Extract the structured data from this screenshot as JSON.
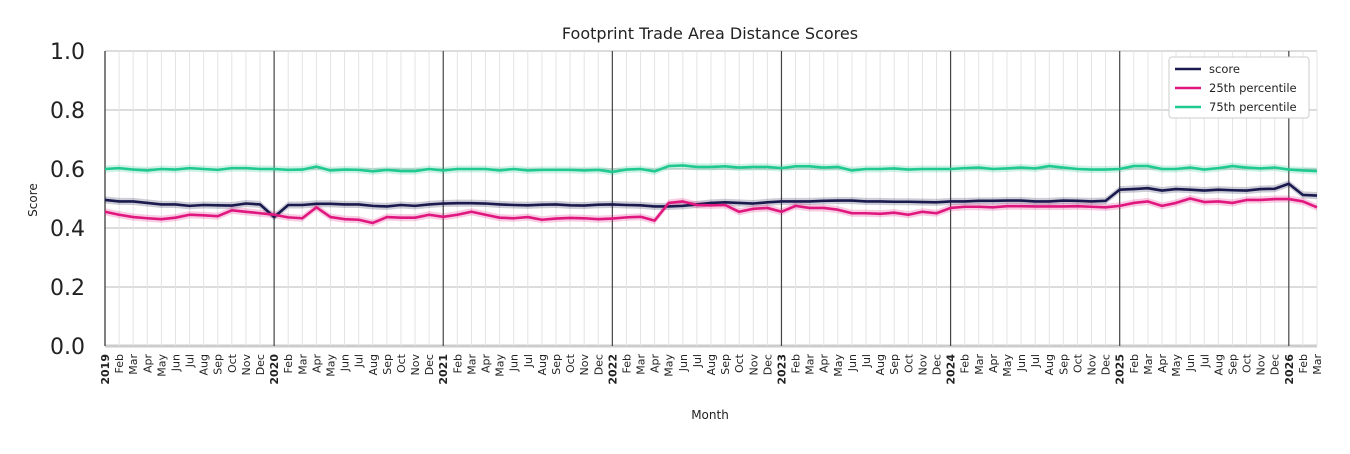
{
  "chart_data": {
    "type": "line",
    "title": "Footprint Trade Area Distance Scores",
    "xlabel": "Month",
    "ylabel": "Score",
    "ylim": [
      0,
      1
    ],
    "yticks": [
      "0.0",
      "0.2",
      "0.4",
      "0.6",
      "0.8",
      "1.0"
    ],
    "grid": true,
    "legend_position": "top-right",
    "x_tick_labels": [
      "2019",
      "Feb",
      "Mar",
      "Apr",
      "May",
      "Jun",
      "Jul",
      "Aug",
      "Sep",
      "Oct",
      "Nov",
      "Dec",
      "2020",
      "Feb",
      "Mar",
      "Apr",
      "May",
      "Jun",
      "Jul",
      "Aug",
      "Sep",
      "Oct",
      "Nov",
      "Dec",
      "2021",
      "Feb",
      "Mar",
      "Apr",
      "May",
      "Jun",
      "Jul",
      "Aug",
      "Sep",
      "Oct",
      "Nov",
      "Dec",
      "2022",
      "Feb",
      "Mar",
      "Apr",
      "May",
      "Jun",
      "Jul",
      "Aug",
      "Sep",
      "Oct",
      "Nov",
      "Dec",
      "2023",
      "Feb",
      "Mar",
      "Apr",
      "May",
      "Jun",
      "Jul",
      "Aug",
      "Sep",
      "Oct",
      "Nov",
      "Dec",
      "2024",
      "Feb",
      "Mar",
      "Apr",
      "May",
      "Jun",
      "Jul",
      "Aug",
      "Sep",
      "Oct",
      "Nov",
      "Dec",
      "2025",
      "Feb",
      "Mar",
      "Apr",
      "May",
      "Jun",
      "Jul",
      "Aug",
      "Sep",
      "Oct",
      "Nov",
      "Dec",
      "2026",
      "Feb",
      "Mar"
    ],
    "series": [
      {
        "name": "score",
        "color": "#1b1a4f",
        "values": [
          0.495,
          0.49,
          0.49,
          0.485,
          0.48,
          0.48,
          0.475,
          0.478,
          0.477,
          0.476,
          0.483,
          0.48,
          0.437,
          0.478,
          0.478,
          0.482,
          0.482,
          0.48,
          0.48,
          0.475,
          0.473,
          0.478,
          0.475,
          0.48,
          0.483,
          0.484,
          0.484,
          0.483,
          0.48,
          0.478,
          0.477,
          0.479,
          0.48,
          0.477,
          0.476,
          0.479,
          0.48,
          0.478,
          0.477,
          0.473,
          0.473,
          0.475,
          0.48,
          0.485,
          0.487,
          0.485,
          0.483,
          0.487,
          0.49,
          0.49,
          0.49,
          0.492,
          0.493,
          0.493,
          0.49,
          0.49,
          0.489,
          0.489,
          0.488,
          0.487,
          0.49,
          0.49,
          0.492,
          0.492,
          0.493,
          0.493,
          0.49,
          0.49,
          0.493,
          0.492,
          0.49,
          0.492,
          0.53,
          0.532,
          0.535,
          0.527,
          0.532,
          0.53,
          0.527,
          0.53,
          0.528,
          0.527,
          0.532,
          0.533,
          0.55,
          0.512,
          0.51
        ]
      },
      {
        "name": "25th percentile",
        "color": "#e0177f",
        "values": [
          0.455,
          0.445,
          0.437,
          0.433,
          0.43,
          0.435,
          0.445,
          0.443,
          0.44,
          0.46,
          0.455,
          0.45,
          0.445,
          0.436,
          0.433,
          0.47,
          0.437,
          0.43,
          0.428,
          0.417,
          0.437,
          0.435,
          0.435,
          0.445,
          0.438,
          0.445,
          0.455,
          0.445,
          0.435,
          0.433,
          0.437,
          0.428,
          0.432,
          0.434,
          0.433,
          0.43,
          0.432,
          0.436,
          0.438,
          0.425,
          0.485,
          0.49,
          0.478,
          0.477,
          0.478,
          0.455,
          0.465,
          0.468,
          0.455,
          0.475,
          0.468,
          0.468,
          0.462,
          0.45,
          0.45,
          0.448,
          0.452,
          0.445,
          0.455,
          0.45,
          0.468,
          0.472,
          0.472,
          0.47,
          0.474,
          0.474,
          0.473,
          0.473,
          0.473,
          0.474,
          0.472,
          0.47,
          0.475,
          0.485,
          0.49,
          0.475,
          0.485,
          0.5,
          0.488,
          0.49,
          0.485,
          0.495,
          0.495,
          0.498,
          0.498,
          0.49,
          0.47
        ]
      },
      {
        "name": "75th percentile",
        "color": "#1fc98f",
        "values": [
          0.6,
          0.603,
          0.598,
          0.595,
          0.6,
          0.598,
          0.603,
          0.6,
          0.597,
          0.603,
          0.603,
          0.6,
          0.6,
          0.597,
          0.598,
          0.608,
          0.595,
          0.598,
          0.597,
          0.592,
          0.597,
          0.593,
          0.593,
          0.6,
          0.595,
          0.6,
          0.6,
          0.6,
          0.595,
          0.6,
          0.595,
          0.597,
          0.597,
          0.597,
          0.595,
          0.597,
          0.59,
          0.598,
          0.6,
          0.592,
          0.61,
          0.612,
          0.607,
          0.607,
          0.609,
          0.605,
          0.607,
          0.607,
          0.603,
          0.609,
          0.609,
          0.605,
          0.607,
          0.595,
          0.6,
          0.6,
          0.602,
          0.598,
          0.6,
          0.6,
          0.6,
          0.603,
          0.605,
          0.6,
          0.602,
          0.605,
          0.602,
          0.61,
          0.605,
          0.6,
          0.598,
          0.598,
          0.6,
          0.61,
          0.61,
          0.6,
          0.6,
          0.605,
          0.598,
          0.603,
          0.61,
          0.605,
          0.602,
          0.605,
          0.598,
          0.595,
          0.593
        ]
      }
    ]
  }
}
